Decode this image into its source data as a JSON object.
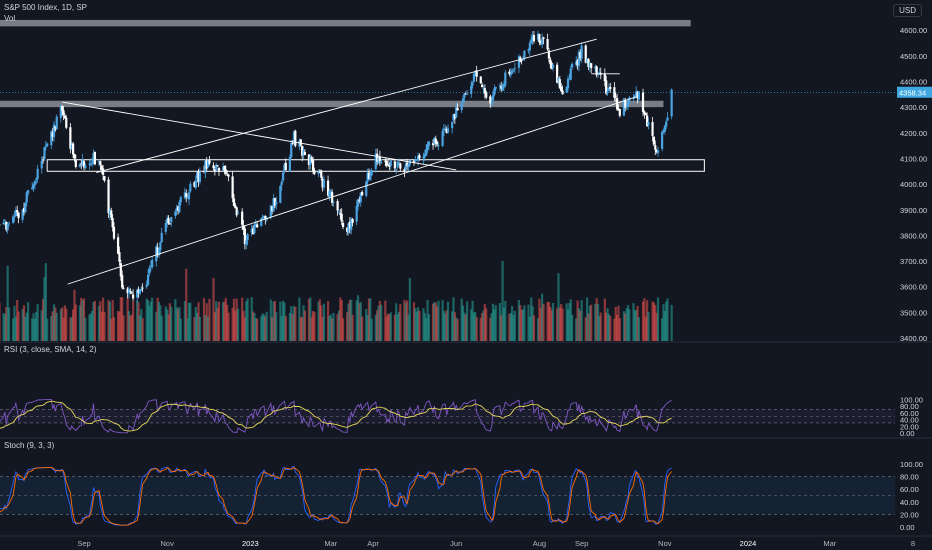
{
  "header": {
    "symbol_line": "S&P 500 Index, 1D, SP",
    "vol_label": "Vol",
    "rsi_label": "RSI (3, close, SMA, 14, 2)",
    "stoch_label": "Stoch (9, 3, 3)",
    "currency": "USD"
  },
  "colors": {
    "background": "#131722",
    "up_candle": "#4aa3e0",
    "down_candle": "#ffffff",
    "vol_up": "#26a69a",
    "vol_down": "#ef5350",
    "rsi_line": "#7e57c2",
    "rsi_ma": "#e6d95a",
    "stoch_k": "#2962ff",
    "stoch_d": "#ff6d00",
    "last_price_tag": "#3fa8e0",
    "zone": "#8c8f98"
  },
  "chart_data": [
    {
      "type": "candlestick",
      "title": "",
      "y_ticks": [
        3400,
        3500,
        3600,
        3700,
        3800,
        3900,
        4000,
        4100,
        4200,
        4300,
        4400,
        4500,
        4600
      ],
      "ylim": [
        3380,
        4690
      ],
      "last_price": "4358.34",
      "x_ticks": [
        "Sep",
        "Nov",
        "2023",
        "Mar",
        "Apr",
        "Jun",
        "Aug",
        "Sep",
        "Nov",
        "2024",
        "Mar",
        "8"
      ],
      "x_tick_dates": [
        "2022-09-01",
        "2022-11-01",
        "2023-01-01",
        "2023-03-01",
        "2023-04-01",
        "2023-06-01",
        "2023-08-01",
        "2023-09-01",
        "2023-11-01",
        "2024-01-01",
        "2024-03-01",
        "2024-05-01"
      ],
      "price_path": [
        [
          "2022-06-20",
          3920
        ],
        [
          "2022-07-01",
          3820
        ],
        [
          "2022-07-18",
          3900
        ],
        [
          "2022-08-01",
          4100
        ],
        [
          "2022-08-16",
          4305
        ],
        [
          "2022-08-26",
          4060
        ],
        [
          "2022-09-12",
          4110
        ],
        [
          "2022-09-30",
          3590
        ],
        [
          "2022-10-13",
          3570
        ],
        [
          "2022-11-01",
          3850
        ],
        [
          "2022-11-30",
          4080
        ],
        [
          "2022-12-13",
          4070
        ],
        [
          "2022-12-28",
          3790
        ],
        [
          "2023-01-18",
          3920
        ],
        [
          "2023-02-02",
          4180
        ],
        [
          "2023-02-28",
          3970
        ],
        [
          "2023-03-13",
          3810
        ],
        [
          "2023-04-03",
          4110
        ],
        [
          "2023-04-25",
          4060
        ],
        [
          "2023-05-22",
          4190
        ],
        [
          "2023-06-15",
          4420
        ],
        [
          "2023-06-26",
          4330
        ],
        [
          "2023-07-31",
          4590
        ],
        [
          "2023-08-18",
          4370
        ],
        [
          "2023-09-01",
          4520
        ],
        [
          "2023-09-29",
          4290
        ],
        [
          "2023-10-11",
          4370
        ],
        [
          "2023-10-27",
          4115
        ],
        [
          "2023-11-06",
          4358
        ]
      ],
      "zones": [
        {
          "from_date": "2022-06-20",
          "to_date": "2023-11-20",
          "low": 4615,
          "high": 4640
        },
        {
          "from_date": "2022-06-20",
          "to_date": "2023-10-31",
          "low": 4300,
          "high": 4325
        },
        {
          "from_date": "2022-08-05",
          "to_date": "2023-11-30",
          "low": 4050,
          "high": 4095
        }
      ],
      "trend_lines": [
        {
          "from": [
            "2022-08-16",
            4320
          ],
          "to": [
            "2023-06-01",
            4055
          ]
        },
        {
          "from": [
            "2022-09-10",
            4045
          ],
          "to": [
            "2023-09-12",
            4565
          ]
        },
        {
          "from": [
            "2022-08-20",
            3610
          ],
          "to": [
            "2023-10-11",
            4340
          ]
        },
        {
          "from": [
            "2023-09-08",
            4430
          ],
          "to": [
            "2023-09-29",
            4430
          ]
        }
      ]
    },
    {
      "type": "bar",
      "title": "Vol",
      "note": "volume bars, no axis values shown"
    },
    {
      "type": "line",
      "title": "RSI (3, close, SMA, 14, 2)",
      "y_ticks": [
        0,
        20,
        40,
        60,
        80,
        100
      ],
      "y_tick_labels": [
        "0.00",
        "20.00",
        "40.00",
        "60.00",
        "80.00",
        "100.00"
      ],
      "ylim": [
        0,
        100
      ],
      "bands": [
        30,
        50,
        70
      ],
      "series": [
        {
          "name": "RSI",
          "kind": "oscillator"
        },
        {
          "name": "MA",
          "kind": "smoothed"
        }
      ]
    },
    {
      "type": "line",
      "title": "Stoch (9, 3, 3)",
      "y_ticks": [
        0,
        20,
        40,
        60,
        80,
        100
      ],
      "y_tick_labels": [
        "0.00",
        "20.00",
        "40.00",
        "60.00",
        "80.00",
        "100.00"
      ],
      "ylim": [
        0,
        100
      ],
      "bands": [
        20,
        50,
        80
      ],
      "series": [
        {
          "name": "%K",
          "kind": "oscillator"
        },
        {
          "name": "%D",
          "kind": "smoothed"
        }
      ]
    }
  ]
}
